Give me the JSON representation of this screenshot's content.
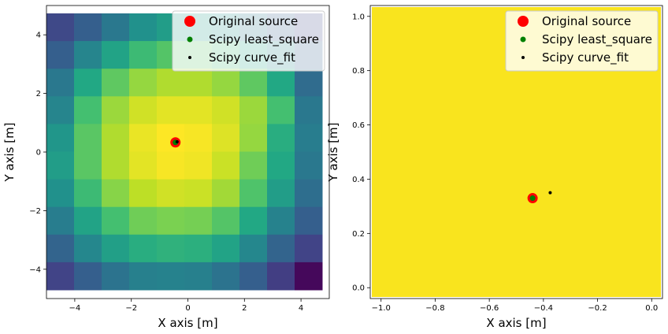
{
  "chart_data": [
    {
      "type": "heatmap",
      "xlabel": "X axis [m]",
      "ylabel": "Y axis [m]",
      "xlim": [
        -5,
        5
      ],
      "ylim": [
        -5,
        5
      ],
      "xticks": [
        -4,
        -2,
        0,
        2,
        4
      ],
      "xtick_labels": [
        "−4",
        "−2",
        "0",
        "2",
        "4"
      ],
      "yticks": [
        -4,
        -2,
        0,
        2,
        4
      ],
      "ytick_labels": [
        "−4",
        "−2",
        "0",
        "2",
        "4"
      ],
      "grid": false,
      "colormap": "viridis",
      "cell_edges": [
        -5,
        -4,
        -3,
        -2,
        -1,
        0,
        1,
        2,
        3,
        4,
        5
      ],
      "values": [
        [
          0.22,
          0.3,
          0.4,
          0.5,
          0.55,
          0.55,
          0.5,
          0.4,
          0.3,
          0.22
        ],
        [
          0.3,
          0.45,
          0.58,
          0.68,
          0.73,
          0.73,
          0.68,
          0.58,
          0.45,
          0.3
        ],
        [
          0.4,
          0.6,
          0.75,
          0.84,
          0.88,
          0.88,
          0.84,
          0.75,
          0.6,
          0.35
        ],
        [
          0.45,
          0.7,
          0.85,
          0.93,
          0.96,
          0.96,
          0.93,
          0.85,
          0.7,
          0.4
        ],
        [
          0.52,
          0.74,
          0.88,
          0.97,
          1.0,
          0.99,
          0.95,
          0.84,
          0.62,
          0.42
        ],
        [
          0.55,
          0.74,
          0.88,
          0.96,
          0.99,
          0.98,
          0.92,
          0.78,
          0.6,
          0.4
        ],
        [
          0.5,
          0.68,
          0.82,
          0.9,
          0.93,
          0.92,
          0.86,
          0.72,
          0.55,
          0.36
        ],
        [
          0.42,
          0.58,
          0.7,
          0.78,
          0.8,
          0.79,
          0.73,
          0.6,
          0.44,
          0.3
        ],
        [
          0.32,
          0.46,
          0.56,
          0.62,
          0.64,
          0.63,
          0.58,
          0.46,
          0.32,
          0.2
        ],
        [
          0.2,
          0.3,
          0.38,
          0.43,
          0.44,
          0.43,
          0.38,
          0.3,
          0.18,
          0.02
        ]
      ],
      "series": [
        {
          "name": "Original source",
          "x": [
            -0.44
          ],
          "y": [
            0.33
          ],
          "color": "#ff0000",
          "marker": "large-circle"
        },
        {
          "name": "Scipy least_square",
          "x": [
            -0.44
          ],
          "y": [
            0.33
          ],
          "color": "#008000",
          "marker": "circle"
        },
        {
          "name": "Scipy curve_fit",
          "x": [
            -0.38
          ],
          "y": [
            0.35
          ],
          "color": "#000000",
          "marker": "point"
        }
      ],
      "legend_position": "upper right"
    },
    {
      "type": "heatmap",
      "xlabel": "X axis [m]",
      "ylabel": "Y axis [m]",
      "xlim": [
        -1.04,
        0.04
      ],
      "ylim": [
        -0.04,
        1.04
      ],
      "xticks": [
        -1.0,
        -0.8,
        -0.6,
        -0.4,
        -0.2,
        0.0
      ],
      "xtick_labels": [
        "−1.0",
        "−0.8",
        "−0.6",
        "−0.4",
        "−0.2",
        "0.0"
      ],
      "yticks": [
        0.0,
        0.2,
        0.4,
        0.6,
        0.8,
        1.0
      ],
      "ytick_labels": [
        "0.0",
        "0.2",
        "0.4",
        "0.6",
        "0.8",
        "1.0"
      ],
      "grid": false,
      "colormap": "viridis",
      "fill_color": "#f9e41e",
      "series": [
        {
          "name": "Original source",
          "x": [
            -0.44
          ],
          "y": [
            0.33
          ],
          "color": "#ff0000",
          "marker": "large-circle"
        },
        {
          "name": "Scipy least_square",
          "x": [
            -0.44
          ],
          "y": [
            0.33
          ],
          "color": "#008000",
          "marker": "circle"
        },
        {
          "name": "Scipy curve_fit",
          "x": [
            -0.375
          ],
          "y": [
            0.35
          ],
          "color": "#000000",
          "marker": "point"
        }
      ],
      "legend_position": "upper right"
    }
  ]
}
